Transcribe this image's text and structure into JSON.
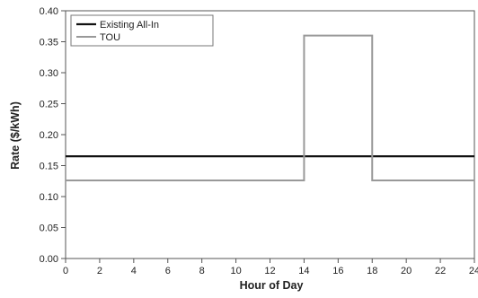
{
  "chart_data": {
    "type": "line",
    "title": "",
    "xlabel": "Hour of Day",
    "ylabel": "Rate ($/kWh)",
    "xlim": [
      0,
      24
    ],
    "ylim": [
      0,
      0.4
    ],
    "x_ticks": [
      "0",
      "2",
      "4",
      "6",
      "8",
      "10",
      "12",
      "14",
      "16",
      "18",
      "20",
      "22",
      "24"
    ],
    "y_ticks": [
      "0.00",
      "0.05",
      "0.10",
      "0.15",
      "0.20",
      "0.25",
      "0.30",
      "0.35",
      "0.40"
    ],
    "grid": false,
    "legend_position": "top-left",
    "series": [
      {
        "name": "Existing All-In",
        "color": "#111111",
        "x": [
          0,
          24
        ],
        "y": [
          0.165,
          0.165
        ]
      },
      {
        "name": "TOU",
        "color": "#999999",
        "x": [
          0,
          14,
          14,
          18,
          18,
          24
        ],
        "y": [
          0.126,
          0.126,
          0.36,
          0.36,
          0.126,
          0.126
        ]
      }
    ]
  }
}
